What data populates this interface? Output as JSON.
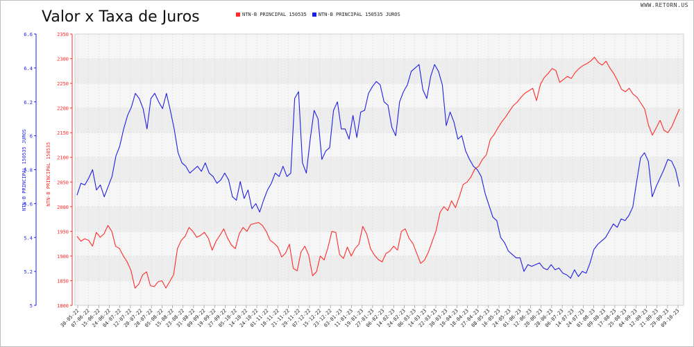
{
  "title": "Valor x Taxa de Juros",
  "site": "WWW.RETORN.US",
  "colors": {
    "value": "#ff2a2a",
    "rate": "#1e1ee6"
  },
  "chart_data": {
    "type": "line",
    "title": "Valor x Taxa de Juros",
    "legend_position": "top-center",
    "grid": true,
    "left_axis_label": "NTN-B PRINCIPAL 150535 JUROS",
    "right_inner_axis_label": "NTN-B PRINCIPAL 150535",
    "y_rate_ticks": [
      "5",
      "5.2",
      "5.4",
      "5.6",
      "5.8",
      "6",
      "6.2",
      "6.4",
      "6.6"
    ],
    "y_rate_range": [
      5,
      6.6
    ],
    "y_value_ticks": [
      "1800",
      "1850",
      "1900",
      "1950",
      "2000",
      "2050",
      "2100",
      "2150",
      "2200",
      "2250",
      "2300",
      "2350"
    ],
    "y_value_range": [
      1800,
      2350
    ],
    "x_labels": [
      "30-05-22",
      "07-06-22",
      "15-06-22",
      "24-06-22",
      "04-07-22",
      "12-07-22",
      "20-07-22",
      "28-07-22",
      "05-08-22",
      "15-08-22",
      "23-08-22",
      "31-08-22",
      "09-09-22",
      "19-09-22",
      "27-09-22",
      "05-10-22",
      "14-10-22",
      "24-10-22",
      "01-11-22",
      "10-11-22",
      "21-11-22",
      "29-11-22",
      "07-12-22",
      "15-12-22",
      "23-12-22",
      "03-01-23",
      "11-01-23",
      "19-01-23",
      "27-01-23",
      "06-02-23",
      "14-02-23",
      "24-02-23",
      "06-03-23",
      "14-03-23",
      "22-03-23",
      "30-03-23",
      "10-04-23",
      "18-04-23",
      "27-04-23",
      "08-05-23",
      "16-05-23",
      "24-05-23",
      "01-06-23",
      "12-06-23",
      "20-06-23",
      "28-06-23",
      "06-07-23",
      "14-07-23",
      "24-07-23",
      "01-08-23",
      "09-08-23",
      "17-08-23",
      "25-08-23",
      "04-09-23",
      "12-09-23",
      "21-09-23",
      "29-09-23",
      "09-10-23"
    ],
    "series": [
      {
        "name": "NTN-B PRINCIPAL 150535",
        "axis": "value",
        "values": [
          1940,
          1930,
          1935,
          1932,
          1920,
          1948,
          1938,
          1945,
          1962,
          1950,
          1920,
          1915,
          1900,
          1888,
          1870,
          1835,
          1843,
          1862,
          1868,
          1840,
          1838,
          1848,
          1850,
          1835,
          1848,
          1862,
          1915,
          1932,
          1940,
          1958,
          1950,
          1938,
          1942,
          1948,
          1936,
          1912,
          1930,
          1942,
          1955,
          1936,
          1922,
          1915,
          1945,
          1958,
          1950,
          1964,
          1966,
          1968,
          1962,
          1950,
          1932,
          1926,
          1918,
          1898,
          1906,
          1924,
          1875,
          1870,
          1908,
          1920,
          1902,
          1860,
          1868,
          1900,
          1892,
          1918,
          1950,
          1948,
          1903,
          1895,
          1918,
          1900,
          1915,
          1924,
          1960,
          1945,
          1915,
          1902,
          1893,
          1888,
          1905,
          1910,
          1920,
          1912,
          1950,
          1955,
          1936,
          1925,
          1905,
          1885,
          1892,
          1908,
          1930,
          1952,
          1988,
          2000,
          1992,
          2012,
          1998,
          2020,
          2045,
          2050,
          2060,
          2076,
          2082,
          2096,
          2105,
          2136,
          2146,
          2160,
          2172,
          2182,
          2194,
          2205,
          2212,
          2222,
          2230,
          2235,
          2240,
          2215,
          2248,
          2262,
          2270,
          2280,
          2276,
          2252,
          2258,
          2264,
          2260,
          2272,
          2280,
          2286,
          2290,
          2295,
          2303,
          2292,
          2287,
          2295,
          2281,
          2270,
          2255,
          2238,
          2233,
          2240,
          2228,
          2222,
          2210,
          2198,
          2165,
          2145,
          2160,
          2175,
          2155,
          2150,
          2162,
          2180,
          2198
        ]
      },
      {
        "name": "NTN-B PRINCIPAL 150535 JUROS",
        "axis": "rate",
        "values": [
          5.65,
          5.72,
          5.71,
          5.75,
          5.8,
          5.68,
          5.71,
          5.64,
          5.7,
          5.76,
          5.88,
          5.94,
          6.04,
          6.12,
          6.17,
          6.25,
          6.22,
          6.16,
          6.04,
          6.22,
          6.25,
          6.2,
          6.16,
          6.25,
          6.15,
          6.04,
          5.9,
          5.84,
          5.82,
          5.78,
          5.8,
          5.82,
          5.79,
          5.84,
          5.78,
          5.76,
          5.72,
          5.74,
          5.78,
          5.74,
          5.64,
          5.62,
          5.73,
          5.63,
          5.68,
          5.57,
          5.6,
          5.55,
          5.62,
          5.68,
          5.72,
          5.78,
          5.76,
          5.82,
          5.76,
          5.78,
          6.22,
          6.26,
          5.84,
          5.78,
          5.98,
          6.15,
          6.1,
          5.86,
          5.91,
          5.93,
          6.15,
          6.2,
          6.04,
          6.04,
          5.98,
          6.12,
          5.99,
          6.14,
          6.15,
          6.25,
          6.29,
          6.32,
          6.3,
          6.2,
          6.18,
          6.05,
          6.0,
          6.2,
          6.26,
          6.3,
          6.38,
          6.4,
          6.42,
          6.27,
          6.22,
          6.35,
          6.42,
          6.38,
          6.3,
          6.06,
          6.14,
          6.08,
          5.98,
          6.0,
          5.91,
          5.86,
          5.82,
          5.8,
          5.76,
          5.66,
          5.59,
          5.52,
          5.5,
          5.4,
          5.37,
          5.32,
          5.3,
          5.28,
          5.28,
          5.2,
          5.24,
          5.23,
          5.24,
          5.25,
          5.22,
          5.21,
          5.24,
          5.21,
          5.22,
          5.19,
          5.18,
          5.16,
          5.21,
          5.17,
          5.2,
          5.19,
          5.25,
          5.33,
          5.36,
          5.38,
          5.4,
          5.44,
          5.48,
          5.46,
          5.51,
          5.5,
          5.53,
          5.58,
          5.73,
          5.87,
          5.9,
          5.85,
          5.64,
          5.7,
          5.75,
          5.8,
          5.86,
          5.85,
          5.8,
          5.7
        ]
      }
    ]
  }
}
